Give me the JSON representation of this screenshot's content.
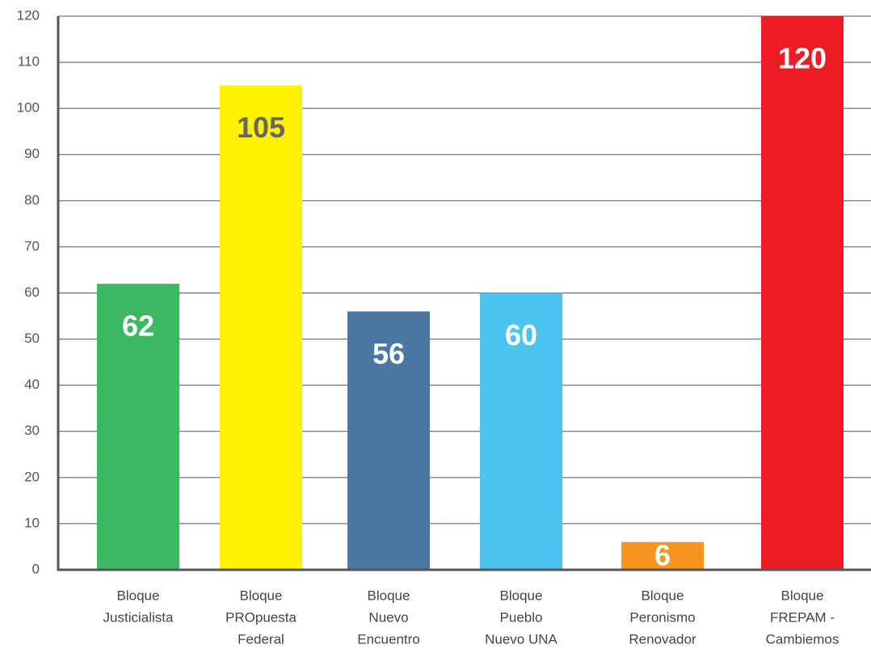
{
  "chart_data": {
    "type": "bar",
    "categories": [
      [
        "Bloque",
        "Justicialista"
      ],
      [
        "Bloque",
        "PROpuesta",
        "Federal"
      ],
      [
        "Bloque",
        "Nuevo",
        "Encuentro"
      ],
      [
        "Bloque",
        "Pueblo",
        "Nuevo UNA"
      ],
      [
        "Bloque",
        "Peronismo",
        "Renovador"
      ],
      [
        "Bloque",
        "FREPAM -",
        "Cambiemos"
      ]
    ],
    "values": [
      62,
      105,
      56,
      60,
      6,
      120
    ],
    "colors": [
      "#3cb863",
      "#fff200",
      "#4b77a3",
      "#4dc3f0",
      "#f7941d",
      "#ed1c24"
    ],
    "value_label_colors": [
      "#ffffff",
      "#666666",
      "#ffffff",
      "#ffffff",
      "#ffffff",
      "#ffffff"
    ],
    "ylim": [
      0,
      120
    ],
    "yticks": [
      0,
      10,
      20,
      30,
      40,
      50,
      60,
      70,
      80,
      90,
      100,
      110,
      120
    ],
    "grid": true
  }
}
